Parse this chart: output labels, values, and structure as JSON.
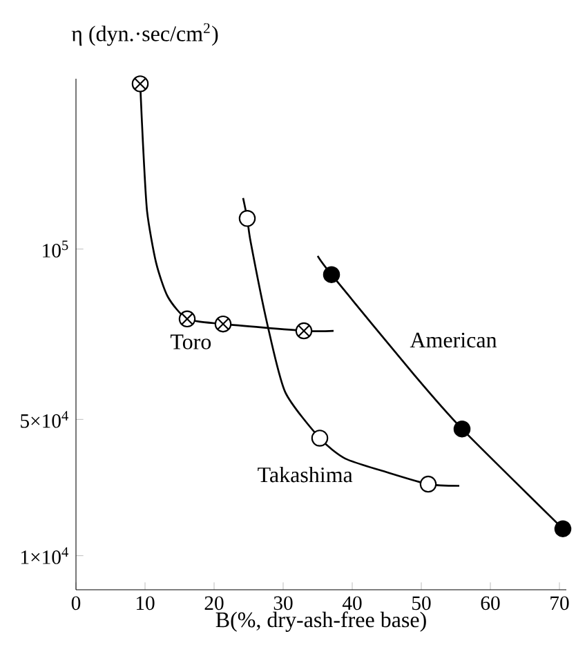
{
  "chart_data": {
    "type": "line",
    "xlabel": "B(%, dry-ash-free base)",
    "ylabel": "η (dyn.·sec/cm$^{2}$)",
    "xlim": [
      0,
      71
    ],
    "ylim": [
      0,
      150000
    ],
    "xticks": [
      0,
      10,
      20,
      30,
      40,
      50,
      60,
      70
    ],
    "yticks": [
      {
        "value": 10000,
        "label": "1×10$^{4}$"
      },
      {
        "value": 50000,
        "label": "5×10$^{4}$"
      },
      {
        "value": 100000,
        "label": "10$^{5}$"
      }
    ],
    "grid": false,
    "series": [
      {
        "name": "Toro",
        "marker": "none",
        "color": "#000000",
        "x": [
          9.3,
          9.3,
          9.7,
          10.3,
          11.6,
          13.3,
          16.1,
          21.3,
          33,
          37.3
        ],
        "values": [
          150000,
          148500,
          131000,
          111000,
          96000,
          86000,
          79500,
          78000,
          76000,
          76000
        ]
      },
      {
        "type": "scatter",
        "marker": "cross",
        "color": "#ffffff",
        "x": [
          9.3,
          16.1,
          21.3,
          33
        ],
        "values": [
          148500,
          79500,
          78000,
          76000
        ]
      },
      {
        "name": "Takashima",
        "marker": "none",
        "color": "#000000",
        "x": [
          24.2,
          24.8,
          25.3,
          27.7,
          30.3,
          35.3,
          39,
          45,
          51,
          55.5
        ],
        "values": [
          115000,
          109000,
          102000,
          78000,
          58000,
          44500,
          38500,
          34500,
          31000,
          30500
        ]
      },
      {
        "type": "scatter",
        "marker": "circle",
        "color": "#ffffff",
        "x": [
          24.8,
          35.3,
          51
        ],
        "values": [
          109000,
          44500,
          31000
        ]
      },
      {
        "name": "American",
        "marker": "none",
        "color": "#000000",
        "x": [
          35,
          37,
          49,
          55.9,
          70.5
        ],
        "values": [
          98000,
          92500,
          63000,
          47200,
          17900
        ]
      },
      {
        "type": "scatter",
        "marker": "circle",
        "color": "#000000",
        "x": [
          37,
          55.9,
          70.5
        ],
        "values": [
          92500,
          47200,
          17900
        ]
      }
    ]
  }
}
